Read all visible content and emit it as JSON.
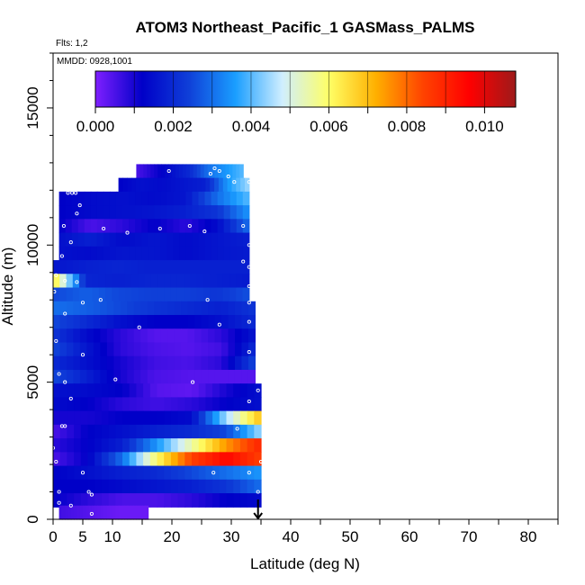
{
  "chart_data": {
    "type": "heatmap",
    "title": "ATOM3 Northeast_Pacific_1 GASMass_PALMS",
    "subtitle_flights": "Flts: 1,2",
    "subtitle_dates": "MMDD: 0928,1001",
    "xlabel": "Latitude (deg N)",
    "ylabel": "Altitude (m)",
    "xlim": [
      0,
      85
    ],
    "ylim": [
      0,
      17000
    ],
    "x_ticks": [
      0,
      5,
      10,
      20,
      30,
      40,
      50,
      60,
      70,
      80
    ],
    "y_ticks": [
      0,
      5000,
      10000,
      15000
    ],
    "colorbar": {
      "range": [
        0,
        0.0108
      ],
      "tick_values": [
        0,
        0.002,
        0.004,
        0.006,
        0.008,
        0.01
      ],
      "tick_labels": [
        "0.000",
        "0.002",
        "0.004",
        "0.006",
        "0.008",
        "0.010"
      ],
      "colors": [
        "#7f1fff",
        "#0000c8",
        "#0f3fd8",
        "#1a9eff",
        "#cfeeff",
        "#ffff66",
        "#ffb000",
        "#ff4400",
        "#ff0000",
        "#9e1a1a"
      ]
    },
    "layers": [
      {
        "alt": 12700,
        "lat_start": 14,
        "lat_end": 32,
        "values": [
          0.0005,
          0.001,
          0.0015,
          0.002,
          0.003,
          0.0035,
          0.004
        ]
      },
      {
        "alt": 12200,
        "lat_start": 11,
        "lat_end": 33,
        "values": [
          0.0012,
          0.0015,
          0.0014,
          0.0016,
          0.0018,
          0.0035,
          0.0045
        ]
      },
      {
        "alt": 11700,
        "lat_start": 1,
        "lat_end": 33,
        "values": [
          0.0012,
          0.0014,
          0.0015,
          0.0014,
          0.0016,
          0.003,
          0.004
        ]
      },
      {
        "alt": 11200,
        "lat_start": 1,
        "lat_end": 33,
        "values": [
          0.0012,
          0.0014,
          0.0015,
          0.0016,
          0.0018,
          0.0022,
          0.0035
        ]
      },
      {
        "alt": 10700,
        "lat_start": 1,
        "lat_end": 33,
        "values": [
          0.0012,
          0.0005,
          0.0008,
          0.0012,
          0.0008,
          0.0014,
          0.003
        ]
      },
      {
        "alt": 10200,
        "lat_start": 1,
        "lat_end": 33,
        "values": [
          0.0015,
          0.0018,
          0.0014,
          0.0016,
          0.0014,
          0.0016,
          0.0018
        ]
      },
      {
        "alt": 9700,
        "lat_start": 1,
        "lat_end": 33,
        "values": [
          0.0015,
          0.0014,
          0.0016,
          0.0016,
          0.0014,
          0.0016,
          0.0017
        ]
      },
      {
        "alt": 9200,
        "lat_start": 0,
        "lat_end": 33,
        "values": [
          0.0016,
          0.0018,
          0.0019,
          0.0018,
          0.0018,
          0.0018,
          0.0018
        ]
      },
      {
        "alt": 8700,
        "lat_start": 0,
        "lat_end": 33,
        "values": [
          0.0065,
          0.0019,
          0.0018,
          0.0019,
          0.0019,
          0.0018,
          0.0017
        ]
      },
      {
        "alt": 8200,
        "lat_start": 0,
        "lat_end": 33,
        "values": [
          0.0025,
          0.0028,
          0.0025,
          0.0024,
          0.0024,
          0.0022,
          0.0026
        ]
      },
      {
        "alt": 7700,
        "lat_start": 0,
        "lat_end": 34,
        "values": [
          0.003,
          0.0028,
          0.0025,
          0.0022,
          0.002,
          0.0018,
          0.0022
        ]
      },
      {
        "alt": 7200,
        "lat_start": 0,
        "lat_end": 34,
        "values": [
          0.0025,
          0.002,
          0.0015,
          0.0012,
          0.0012,
          0.0015,
          0.002
        ]
      },
      {
        "alt": 6700,
        "lat_start": 0,
        "lat_end": 34,
        "values": [
          0.0022,
          0.0014,
          0.0008,
          0.0004,
          0.0004,
          0.0008,
          0.0016
        ]
      },
      {
        "alt": 6200,
        "lat_start": 0,
        "lat_end": 34,
        "values": [
          0.0025,
          0.0016,
          0.0008,
          0.0005,
          0.0004,
          0.0006,
          0.002
        ]
      },
      {
        "alt": 5700,
        "lat_start": 0,
        "lat_end": 34,
        "values": [
          0.002,
          0.0015,
          0.001,
          0.0006,
          0.0005,
          0.0008,
          0.0025
        ]
      },
      {
        "alt": 5200,
        "lat_start": 0,
        "lat_end": 34,
        "values": [
          0.0025,
          0.0018,
          0.001,
          0.0005,
          0.0004,
          0.0004,
          0.0004
        ]
      },
      {
        "alt": 4700,
        "lat_start": 0,
        "lat_end": 35,
        "values": [
          0.0015,
          0.0014,
          0.0012,
          0.0004,
          0.0003,
          0.001,
          0.0015
        ]
      },
      {
        "alt": 4200,
        "lat_start": 0,
        "lat_end": 35,
        "values": [
          0.0014,
          0.0012,
          0.0008,
          0.0006,
          0.0008,
          0.0012,
          0.0015
        ]
      },
      {
        "alt": 3700,
        "lat_start": 0,
        "lat_end": 35,
        "values": [
          0.001,
          0.001,
          0.0012,
          0.0012,
          0.0014,
          0.0045,
          0.007
        ]
      },
      {
        "alt": 3200,
        "lat_start": 0,
        "lat_end": 35,
        "values": [
          0.0005,
          0.0012,
          0.0015,
          0.0018,
          0.002,
          0.0025,
          0.0045
        ]
      },
      {
        "alt": 2700,
        "lat_start": 0,
        "lat_end": 35,
        "values": [
          0.0008,
          0.0012,
          0.0018,
          0.0035,
          0.0055,
          0.0075,
          0.009
        ]
      },
      {
        "alt": 2200,
        "lat_start": 0,
        "lat_end": 35,
        "values": [
          0.0005,
          0.0012,
          0.003,
          0.006,
          0.0085,
          0.0095,
          0.0085
        ]
      },
      {
        "alt": 1700,
        "lat_start": 0,
        "lat_end": 35,
        "values": [
          0.0012,
          0.0015,
          0.0018,
          0.002,
          0.0025,
          0.003,
          0.0035
        ]
      },
      {
        "alt": 1200,
        "lat_start": 0,
        "lat_end": 35,
        "values": [
          0.0012,
          0.0012,
          0.0014,
          0.0016,
          0.0018,
          0.0022,
          0.003
        ]
      },
      {
        "alt": 700,
        "lat_start": 0,
        "lat_end": 35,
        "values": [
          0.0012,
          0.0008,
          0.0005,
          0.0005,
          0.0008,
          0.0012,
          0.0014
        ]
      },
      {
        "alt": 250,
        "lat_start": 1,
        "lat_end": 16,
        "values": [
          0.0006,
          0.0004,
          0.0002,
          0.0002
        ]
      }
    ],
    "points": [
      [
        19.5,
        12700
      ],
      [
        26.5,
        12600
      ],
      [
        27.2,
        12800
      ],
      [
        28,
        12700
      ],
      [
        29.5,
        12500
      ],
      [
        30.5,
        12300
      ],
      [
        33,
        12300
      ],
      [
        2.5,
        11900
      ],
      [
        3.2,
        11900
      ],
      [
        3.8,
        11900
      ],
      [
        4.5,
        11450
      ],
      [
        4,
        11150
      ],
      [
        1.8,
        10700
      ],
      [
        8.5,
        10600
      ],
      [
        12.5,
        10450
      ],
      [
        18,
        10600
      ],
      [
        23,
        10700
      ],
      [
        25.5,
        10500
      ],
      [
        32,
        10700
      ],
      [
        3,
        10100
      ],
      [
        33,
        10000
      ],
      [
        1.5,
        9600
      ],
      [
        32,
        9400
      ],
      [
        33,
        9200
      ],
      [
        0.5,
        8900
      ],
      [
        2,
        8700
      ],
      [
        4,
        8650
      ],
      [
        33,
        8500
      ],
      [
        0.2,
        8300
      ],
      [
        8,
        8000
      ],
      [
        5,
        7900
      ],
      [
        26,
        8000
      ],
      [
        33,
        7900
      ],
      [
        2,
        7500
      ],
      [
        14.5,
        7000
      ],
      [
        28,
        7100
      ],
      [
        33,
        7200
      ],
      [
        0.5,
        6500
      ],
      [
        5,
        6000
      ],
      [
        33,
        6100
      ],
      [
        1,
        5300
      ],
      [
        10.5,
        5100
      ],
      [
        2,
        5000
      ],
      [
        23.5,
        5000
      ],
      [
        3,
        4400
      ],
      [
        33,
        4300
      ],
      [
        34.5,
        4700
      ],
      [
        1.5,
        3400
      ],
      [
        2,
        3400
      ],
      [
        31,
        3300
      ],
      [
        35,
        2100
      ],
      [
        0,
        2600
      ],
      [
        0.5,
        2100
      ],
      [
        5,
        1700
      ],
      [
        27,
        1700
      ],
      [
        33,
        1700
      ],
      [
        1,
        1000
      ],
      [
        6,
        1000
      ],
      [
        6.5,
        900
      ],
      [
        34.5,
        1000
      ],
      [
        1,
        600
      ],
      [
        3,
        500
      ],
      [
        6.5,
        200
      ]
    ],
    "marker_lat": 34.5
  }
}
